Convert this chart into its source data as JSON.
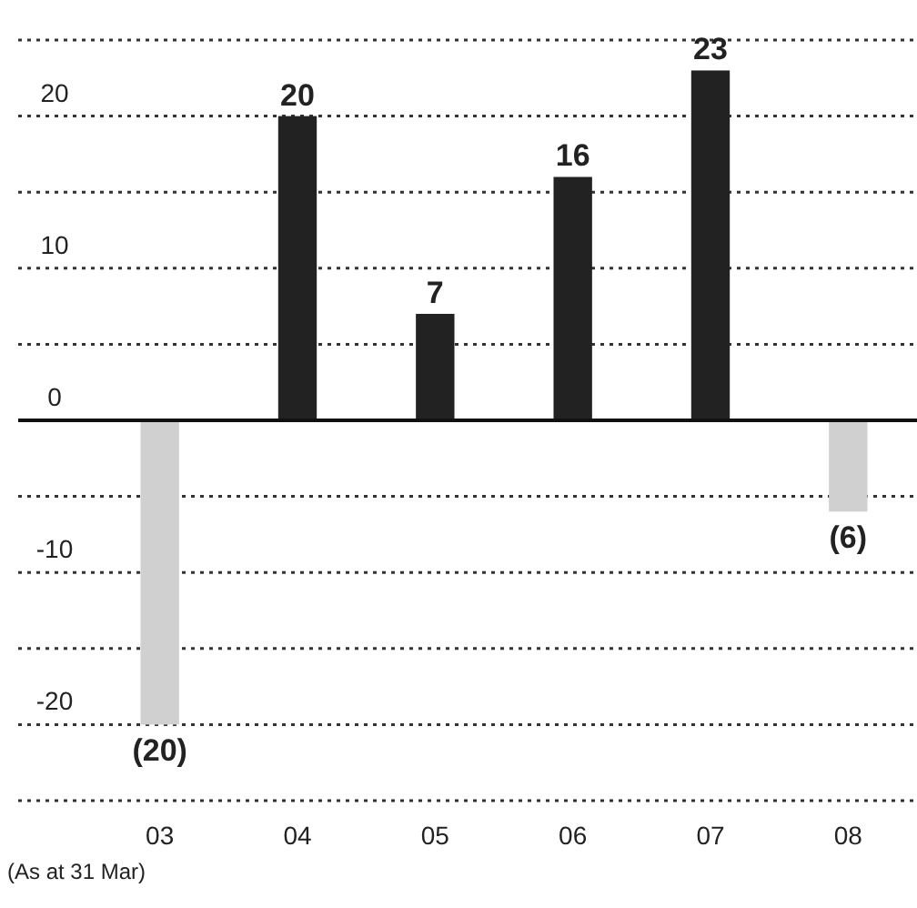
{
  "chart_data": {
    "type": "bar",
    "categories": [
      "03",
      "04",
      "05",
      "06",
      "07",
      "08"
    ],
    "values": [
      -20,
      20,
      7,
      16,
      23,
      -6
    ],
    "colors": [
      "#d0d0d0",
      "#222222",
      "#222222",
      "#222222",
      "#222222",
      "#d0d0d0"
    ],
    "value_labels": [
      "(20)",
      "20",
      "7",
      "16",
      "23",
      "(6)"
    ],
    "ylim": [
      -25,
      25
    ],
    "yticks": [
      {
        "value": -25,
        "label": null
      },
      -20,
      {
        "value": -15,
        "label": null
      },
      -10,
      {
        "value": -5,
        "label": null
      },
      0,
      {
        "value": 5,
        "label": null
      },
      10,
      {
        "value": 15,
        "label": null
      },
      20,
      {
        "value": 25,
        "label": null
      }
    ],
    "grid": "y",
    "line_style": "dotted",
    "annotations": [
      "(As at 31 Mar)"
    ]
  }
}
